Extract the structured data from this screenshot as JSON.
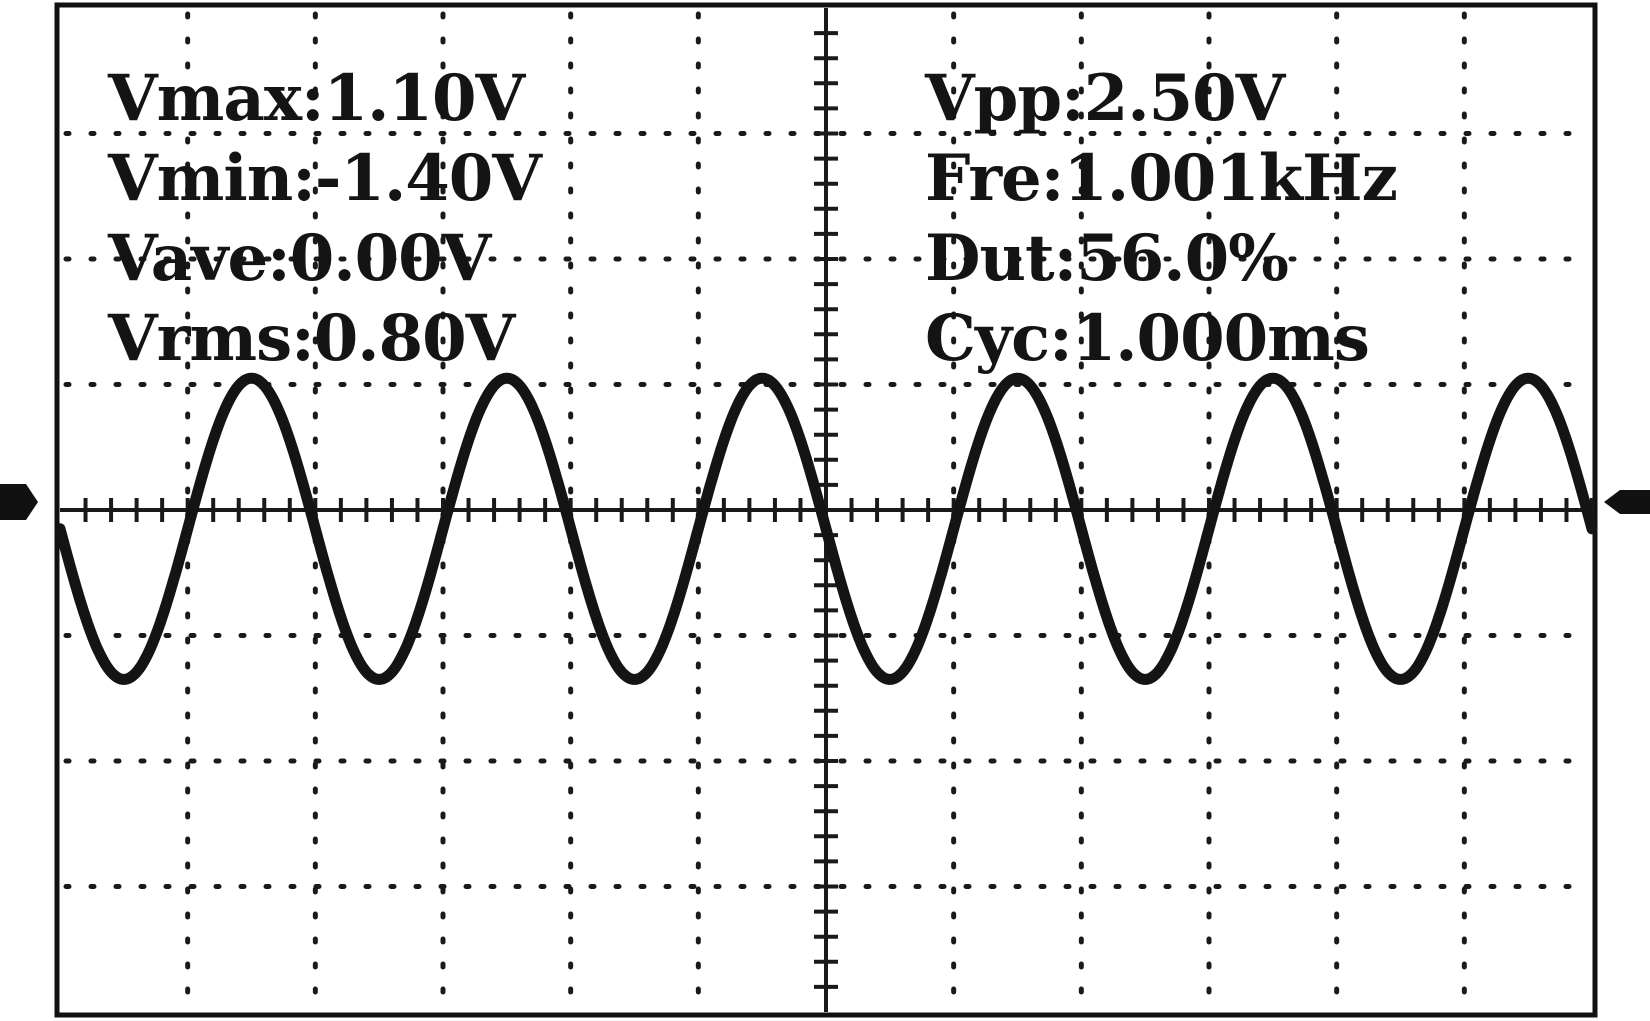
{
  "measurements": {
    "left": [
      {
        "label": "Vmax",
        "value": "1.10V"
      },
      {
        "label": "Vmin",
        "value": "-1.40V"
      },
      {
        "label": "Vave",
        "value": "0.00V"
      },
      {
        "label": "Vrms",
        "value": "0.80V"
      }
    ],
    "right": [
      {
        "label": "Vpp",
        "value": "2.50V"
      },
      {
        "label": "Fre",
        "value": "1.001kHz"
      },
      {
        "label": "Dut",
        "value": "56.0%"
      },
      {
        "label": "Cyc",
        "value": "1.000ms"
      }
    ]
  },
  "chart_data": {
    "type": "line",
    "grid": true,
    "x_divisions": 12,
    "y_divisions": 8,
    "cycles_on_screen": 6,
    "series": [
      {
        "waveform": "sine",
        "max_divisions": 1.05,
        "min_divisions": -1.35,
        "phase_start": "falling"
      }
    ]
  },
  "colors": {
    "background": "#ffffff",
    "trace": "#141414",
    "grid": "#1a1a1a",
    "text": "#141414"
  }
}
